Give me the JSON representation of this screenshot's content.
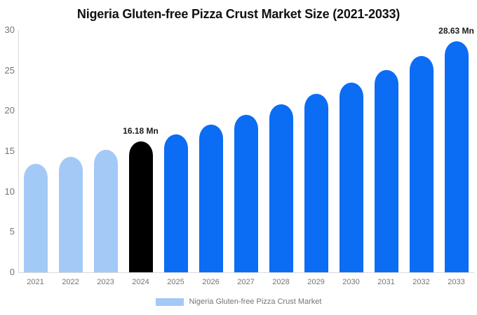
{
  "title": "Nigeria Gluten-free Pizza Crust Market Size (2021-2033)",
  "legend": {
    "label": "Nigeria Gluten-free Pizza Crust Market",
    "swatch_color": "#a3c9f6"
  },
  "colors": {
    "historical_bar": "#a3c9f6",
    "base_year_bar": "#000000",
    "forecast_bar": "#0b6cf4",
    "axis_line": "#d9d9d9",
    "tick_text": "#757575",
    "annotation_text": "#1a1a1a",
    "title_text": "#111111"
  },
  "chart_data": {
    "type": "bar",
    "title": "Nigeria Gluten-free Pizza Crust Market Size (2021-2033)",
    "unit": "Mn",
    "categories": [
      "2021",
      "2022",
      "2023",
      "2024",
      "2025",
      "2026",
      "2027",
      "2028",
      "2029",
      "2030",
      "2031",
      "2032",
      "2033"
    ],
    "values": [
      13.4,
      14.3,
      15.2,
      16.18,
      17.1,
      18.3,
      19.5,
      20.8,
      22.1,
      23.5,
      25.1,
      26.8,
      28.63
    ],
    "bar_colors": [
      "#a3c9f6",
      "#a3c9f6",
      "#a3c9f6",
      "#000000",
      "#0b6cf4",
      "#0b6cf4",
      "#0b6cf4",
      "#0b6cf4",
      "#0b6cf4",
      "#0b6cf4",
      "#0b6cf4",
      "#0b6cf4",
      "#0b6cf4"
    ],
    "y_ticks": [
      0,
      5,
      10,
      15,
      20,
      25,
      30
    ],
    "ylim": [
      0,
      30
    ],
    "xlabel": "",
    "ylabel": "",
    "grid": false,
    "legend_position": "bottom",
    "legend_entries": [
      "Nigeria Gluten-free Pizza Crust Market"
    ],
    "annotations": [
      {
        "category": "2024",
        "text": "16.18 Mn"
      },
      {
        "category": "2033",
        "text": "28.63 Mn"
      }
    ]
  }
}
